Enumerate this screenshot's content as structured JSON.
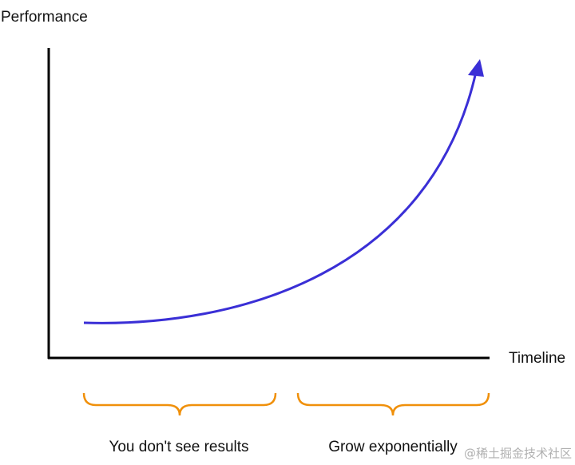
{
  "axes": {
    "y_label": "Performance",
    "x_label": "Timeline"
  },
  "phases": [
    {
      "label": "You don't see results"
    },
    {
      "label": "Grow exponentially"
    }
  ],
  "watermark": "@稀土掘金技术社区"
}
